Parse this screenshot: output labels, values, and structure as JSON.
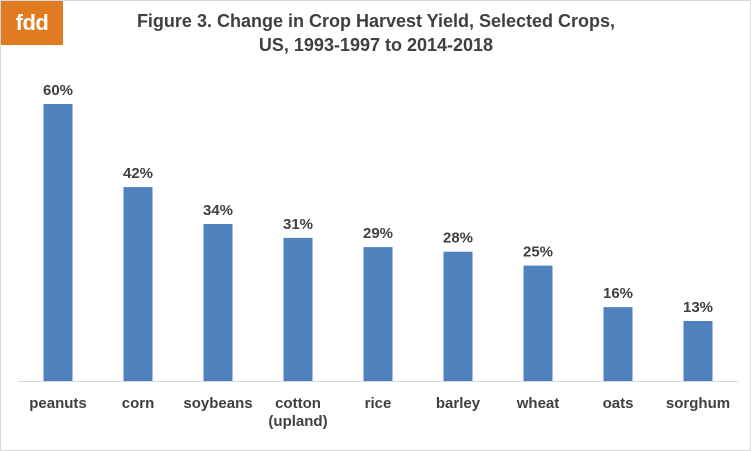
{
  "logo": {
    "text": "fdd",
    "color": "#e07b22"
  },
  "title": {
    "line1": "Figure 3.  Change in Crop Harvest Yield, Selected Crops,",
    "line2": "US, 1993-1997 to 2014-2018"
  },
  "chart_data": {
    "type": "bar",
    "title": "Figure 3.  Change in Crop Harvest Yield, Selected Crops, US, 1993-1997 to 2014-2018",
    "categories": [
      "peanuts",
      "corn",
      "soybeans",
      "cotton (upland)",
      "rice",
      "barley",
      "wheat",
      "oats",
      "sorghum"
    ],
    "category_lines": [
      [
        "peanuts"
      ],
      [
        "corn"
      ],
      [
        "soybeans"
      ],
      [
        "cotton",
        "(upland)"
      ],
      [
        "rice"
      ],
      [
        "barley"
      ],
      [
        "wheat"
      ],
      [
        "oats"
      ],
      [
        "sorghum"
      ]
    ],
    "values": [
      60,
      42,
      34,
      31,
      29,
      28,
      25,
      16,
      13
    ],
    "value_labels": [
      "60%",
      "42%",
      "34%",
      "31%",
      "29%",
      "28%",
      "25%",
      "16%",
      "13%"
    ],
    "ylim": [
      0,
      60
    ],
    "bar_color": "#4f81bd",
    "grid": false,
    "legend": "none"
  }
}
